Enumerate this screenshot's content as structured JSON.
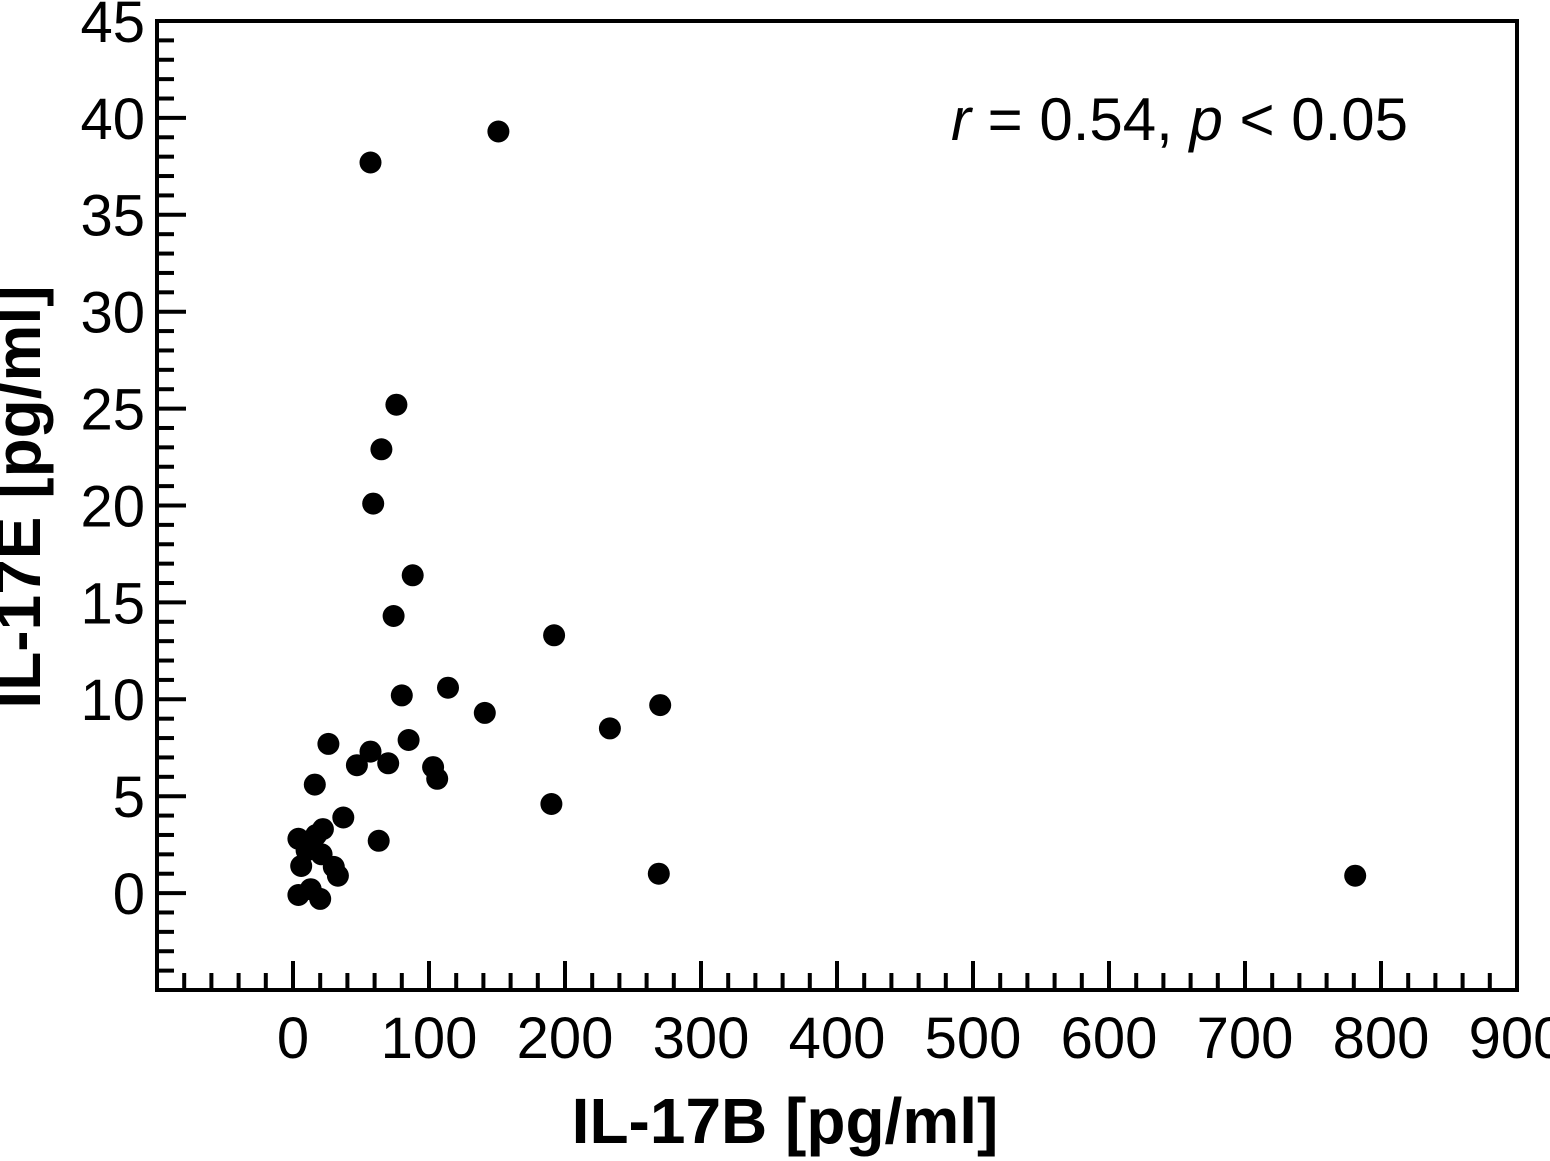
{
  "figure": {
    "background": "#ffffff",
    "ink_color": "#000000"
  },
  "chart_data": {
    "type": "scatter",
    "title": "",
    "xlabel": "IL-17B [pg/ml]",
    "ylabel": "IL-17E [pg/ml]",
    "annotation_text": "r = 0.54, p < 0.05",
    "annotation_segments": [
      {
        "text": "r",
        "italic": true
      },
      {
        "text": " = 0.54, ",
        "italic": false
      },
      {
        "text": "p",
        "italic": true
      },
      {
        "text": " < 0.05",
        "italic": false
      }
    ],
    "xlim": [
      -100,
      900
    ],
    "ylim": [
      -5,
      45
    ],
    "x_major_ticks": [
      0,
      100,
      200,
      300,
      400,
      500,
      600,
      700,
      800,
      900
    ],
    "x_minor_tick_step": 20,
    "y_major_ticks": [
      0,
      5,
      10,
      15,
      20,
      25,
      30,
      35,
      40,
      45
    ],
    "y_minor_tick_step": 1,
    "grid": false,
    "legend": "none",
    "marker": {
      "shape": "circle",
      "color": "#000000",
      "radius_px": 11
    },
    "points": [
      [
        151,
        39.3
      ],
      [
        57,
        37.7
      ],
      [
        76,
        25.2
      ],
      [
        65,
        22.9
      ],
      [
        59,
        20.1
      ],
      [
        88,
        16.4
      ],
      [
        74,
        14.3
      ],
      [
        192,
        13.3
      ],
      [
        114,
        10.6
      ],
      [
        80,
        10.2
      ],
      [
        270,
        9.7
      ],
      [
        141,
        9.3
      ],
      [
        233,
        8.5
      ],
      [
        85,
        7.9
      ],
      [
        26,
        7.7
      ],
      [
        57,
        7.3
      ],
      [
        70,
        6.7
      ],
      [
        47,
        6.6
      ],
      [
        103,
        6.5
      ],
      [
        106,
        5.9
      ],
      [
        16,
        5.6
      ],
      [
        190,
        4.6
      ],
      [
        37,
        3.9
      ],
      [
        63,
        2.7
      ],
      [
        22,
        3.3
      ],
      [
        17,
        3.0
      ],
      [
        4,
        2.8
      ],
      [
        10,
        2.2
      ],
      [
        21,
        2.0
      ],
      [
        6,
        1.4
      ],
      [
        30,
        1.35
      ],
      [
        33,
        0.9
      ],
      [
        269,
        1.0
      ],
      [
        781,
        0.9
      ],
      [
        4,
        -0.1
      ],
      [
        13,
        0.2
      ],
      [
        20,
        -0.3
      ]
    ]
  }
}
